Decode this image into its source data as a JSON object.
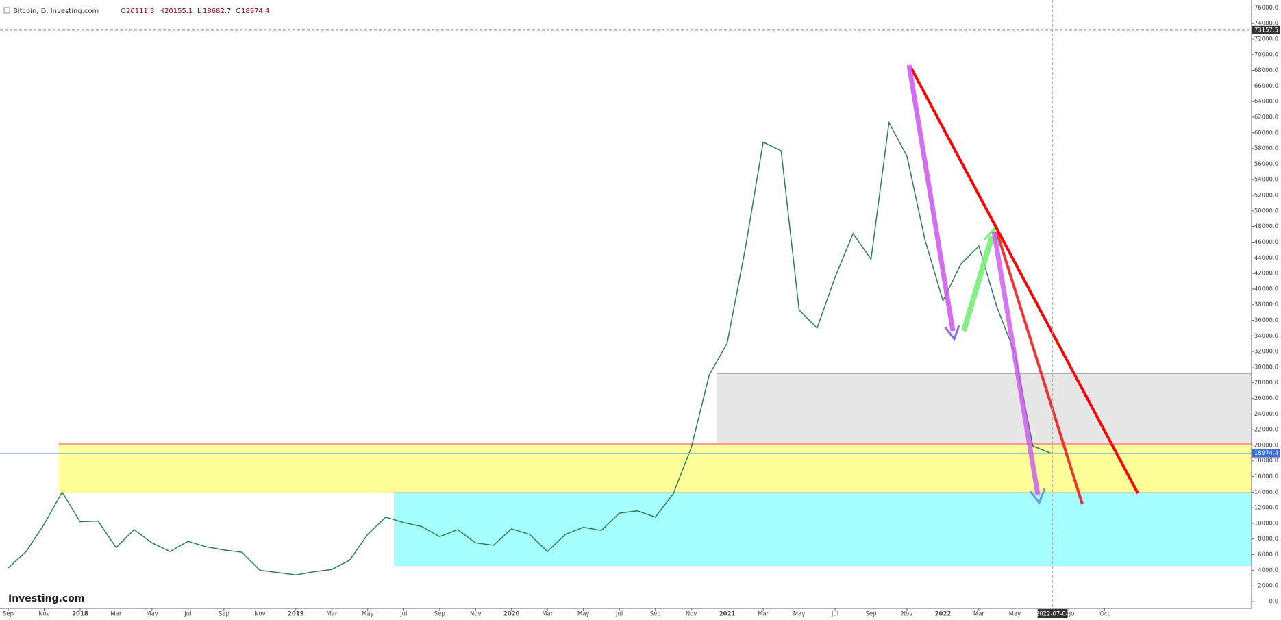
{
  "chart_data": {
    "type": "line",
    "title": "Bitcoin, D, Investing.com",
    "ohlc": [
      {
        "label": "O",
        "value": 20111.3
      },
      {
        "label": "H",
        "value": 20155.1
      },
      {
        "label": "L",
        "value": 18682.7
      },
      {
        "label": "C",
        "value": 18974.4
      }
    ],
    "logo": "Investing.com",
    "color": "#2f7d55",
    "x": [
      "2017-09",
      "2017-10",
      "2017-11",
      "2017-12",
      "2018-01",
      "2018-02",
      "2018-03",
      "2018-04",
      "2018-05",
      "2018-06",
      "2018-07",
      "2018-08",
      "2018-09",
      "2018-10",
      "2018-11",
      "2018-12",
      "2019-01",
      "2019-02",
      "2019-03",
      "2019-04",
      "2019-05",
      "2019-06",
      "2019-07",
      "2019-08",
      "2019-09",
      "2019-10",
      "2019-11",
      "2019-12",
      "2020-01",
      "2020-02",
      "2020-03",
      "2020-04",
      "2020-05",
      "2020-06",
      "2020-07",
      "2020-08",
      "2020-09",
      "2020-10",
      "2020-11",
      "2020-12",
      "2021-01",
      "2021-02",
      "2021-03",
      "2021-04",
      "2021-05",
      "2021-06",
      "2021-07",
      "2021-08",
      "2021-09",
      "2021-10",
      "2021-11",
      "2021-12",
      "2022-01",
      "2022-02",
      "2022-03",
      "2022-04",
      "2022-05",
      "2022-06",
      "2022-07"
    ],
    "values": [
      4300,
      6400,
      9900,
      14000,
      10200,
      10300,
      6900,
      9200,
      7500,
      6400,
      7700,
      7000,
      6600,
      6300,
      4000,
      3700,
      3400,
      3800,
      4100,
      5300,
      8600,
      10800,
      10100,
      9600,
      8300,
      9200,
      7500,
      7200,
      9300,
      8600,
      6400,
      8600,
      9500,
      9100,
      11300,
      11600,
      10800,
      13800,
      19700,
      29000,
      33100,
      45100,
      58800,
      57700,
      37300,
      35000,
      41500,
      47100,
      43800,
      61300,
      57000,
      46300,
      38500,
      43200,
      45500,
      37700,
      31800,
      19900,
      18974.4
    ],
    "ylim": [
      -880,
      77000
    ],
    "yticks": [
      {
        "value": 0,
        "label": "0.0"
      },
      {
        "value": 2000,
        "label": "2000.0"
      },
      {
        "value": 4000,
        "label": "4000.0"
      },
      {
        "value": 6000,
        "label": "6000.0"
      },
      {
        "value": 8000,
        "label": "8000.0"
      },
      {
        "value": 10000,
        "label": "10000.0"
      },
      {
        "value": 12000,
        "label": "12000.0"
      },
      {
        "value": 14000,
        "label": "14000.0"
      },
      {
        "value": 16000,
        "label": "16000.0"
      },
      {
        "value": 18000,
        "label": "18000.0"
      },
      {
        "value": 20000,
        "label": "20000.0"
      },
      {
        "value": 22000,
        "label": "22000.0"
      },
      {
        "value": 24000,
        "label": "24000.0"
      },
      {
        "value": 26000,
        "label": "26000.0"
      },
      {
        "value": 28000,
        "label": "28000.0"
      },
      {
        "value": 30000,
        "label": "30000.0"
      },
      {
        "value": 32000,
        "label": "32000.0"
      },
      {
        "value": 34000,
        "label": "34000.0"
      },
      {
        "value": 36000,
        "label": "36000.0"
      },
      {
        "value": 38000,
        "label": "38000.0"
      },
      {
        "value": 40000,
        "label": "40000.0"
      },
      {
        "value": 42000,
        "label": "42000.0"
      },
      {
        "value": 44000,
        "label": "44000.0"
      },
      {
        "value": 46000,
        "label": "46000.0"
      },
      {
        "value": 48000,
        "label": "48000.0"
      },
      {
        "value": 50000,
        "label": "50000.0"
      },
      {
        "value": 52000,
        "label": "52000.0"
      },
      {
        "value": 54000,
        "label": "54000.0"
      },
      {
        "value": 56000,
        "label": "56000.0"
      },
      {
        "value": 58000,
        "label": "58000.0"
      },
      {
        "value": 60000,
        "label": "60000.0"
      },
      {
        "value": 62000,
        "label": "62000.0"
      },
      {
        "value": 64000,
        "label": "64000.0"
      },
      {
        "value": 66000,
        "label": "66000.0"
      },
      {
        "value": 68000,
        "label": "68000.0"
      },
      {
        "value": 70000,
        "label": "70000.0"
      },
      {
        "value": 72000,
        "label": "72000.0"
      },
      {
        "value": 74000,
        "label": "74000.0"
      },
      {
        "value": 76000,
        "label": "76000.0"
      }
    ],
    "xticks": [
      {
        "value": "2017-09",
        "label": "Sep"
      },
      {
        "value": "2017-11",
        "label": "Nov"
      },
      {
        "value": "2018-01",
        "label": "2018"
      },
      {
        "value": "2018-03",
        "label": "Mar"
      },
      {
        "value": "2018-05",
        "label": "May"
      },
      {
        "value": "2018-07",
        "label": "Jul"
      },
      {
        "value": "2018-09",
        "label": "Sep"
      },
      {
        "value": "2018-11",
        "label": "Nov"
      },
      {
        "value": "2019-01",
        "label": "2019"
      },
      {
        "value": "2019-03",
        "label": "Mar"
      },
      {
        "value": "2019-05",
        "label": "May"
      },
      {
        "value": "2019-07",
        "label": "Jul"
      },
      {
        "value": "2019-09",
        "label": "Sep"
      },
      {
        "value": "2019-11",
        "label": "Nov"
      },
      {
        "value": "2020-01",
        "label": "2020"
      },
      {
        "value": "2020-03",
        "label": "Mar"
      },
      {
        "value": "2020-05",
        "label": "May"
      },
      {
        "value": "2020-07",
        "label": "Jul"
      },
      {
        "value": "2020-09",
        "label": "Sep"
      },
      {
        "value": "2020-11",
        "label": "Nov"
      },
      {
        "value": "2021-01",
        "label": "2021"
      },
      {
        "value": "2021-03",
        "label": "Mar"
      },
      {
        "value": "2021-05",
        "label": "May"
      },
      {
        "value": "2021-07",
        "label": "Jul"
      },
      {
        "value": "2021-09",
        "label": "Sep"
      },
      {
        "value": "2021-11",
        "label": "Nov"
      },
      {
        "value": "2022-01",
        "label": "2022"
      },
      {
        "value": "2022-03",
        "label": "Mar"
      },
      {
        "value": "2022-05",
        "label": "May"
      },
      {
        "value": "2022-08",
        "label": "Ago"
      },
      {
        "value": "2022-10",
        "label": "Oct"
      }
    ],
    "last_price": 18974.4,
    "crosshair": {
      "price": 73157.5,
      "date": "2022-07-04"
    }
  }
}
